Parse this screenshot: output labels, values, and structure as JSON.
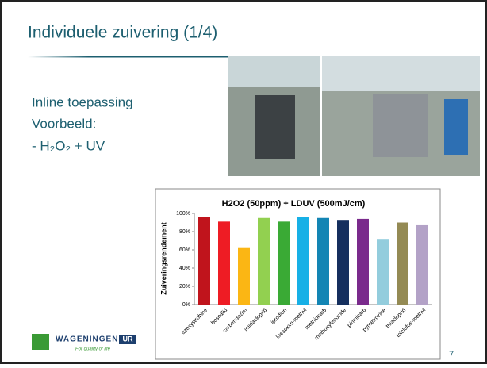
{
  "slide": {
    "title": "Individuele zuivering (1/4)",
    "lines": [
      "Inline toepassing",
      "Voorbeeld:",
      "- H₂O₂ + UV"
    ],
    "logo": {
      "name": "WAGENINGEN",
      "badge": "UR",
      "tagline": "For quality of life"
    },
    "page_number": "7"
  },
  "chart_data": {
    "type": "bar",
    "title": "H2O2 (50ppm) + LDUV (500mJ/cm)",
    "y_label": "Zuiveringsrendement",
    "categories": [
      "azoxystrobine",
      "boscalid",
      "carbendazim",
      "imidacloprid",
      "iprodion",
      "kresoxim-methyl",
      "methiocarb",
      "methoxyfenozide",
      "pirimicarb",
      "pymetrozine",
      "thiacloprid",
      "tolclofos-methyl"
    ],
    "values": [
      96,
      91,
      62,
      95,
      91,
      96,
      95,
      92,
      94,
      72,
      90,
      87
    ],
    "colors": [
      "#c0141c",
      "#ee1c24",
      "#fbb614",
      "#92d050",
      "#3aaa35",
      "#17b0e6",
      "#1385b4",
      "#152f5e",
      "#7a2a8c",
      "#93cddd",
      "#948a54",
      "#b3a2c7"
    ],
    "ylim": [
      0,
      100
    ],
    "yticks": [
      {
        "value": 0,
        "label": "0%"
      },
      {
        "value": 20,
        "label": "20%"
      },
      {
        "value": 40,
        "label": "40%"
      },
      {
        "value": 60,
        "label": "60%"
      },
      {
        "value": 80,
        "label": "80%"
      },
      {
        "value": 100,
        "label": "100%"
      }
    ],
    "grid": false
  }
}
